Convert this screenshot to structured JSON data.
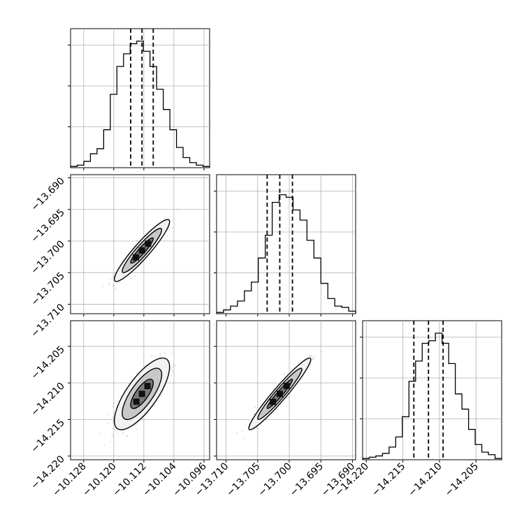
{
  "chart_data": {
    "type": "corner",
    "params": [
      {
        "ticks": [
          -10.128,
          -10.12,
          -10.112,
          -10.104,
          -10.096
        ],
        "labels": [
          "−10.128",
          "−10.120",
          "−10.112",
          "−10.104",
          "−10.096"
        ],
        "range": [
          -10.1315,
          -10.0945
        ],
        "quantiles": [
          -10.1155,
          -10.1125,
          -10.1095
        ]
      },
      {
        "ticks": [
          -13.71,
          -13.705,
          -13.7,
          -13.695,
          -13.69
        ],
        "labels": [
          "−13.710",
          "−13.705",
          "−13.700",
          "−13.695",
          "−13.690"
        ],
        "range": [
          -13.7115,
          -13.6895
        ],
        "quantiles": [
          -13.7035,
          -13.7015,
          -13.6995
        ]
      },
      {
        "ticks": [
          -14.22,
          -14.215,
          -14.21,
          -14.205
        ],
        "labels": [
          "−14.220",
          "−14.215",
          "−14.210",
          "−14.205"
        ],
        "range": [
          -14.2205,
          -14.2015
        ],
        "quantiles": [
          -14.2135,
          -14.2115,
          -14.2095
        ]
      }
    ],
    "histograms": [
      [
        0.01,
        0.02,
        0.05,
        0.11,
        0.15,
        0.3,
        0.58,
        0.8,
        0.9,
        0.98,
        1.0,
        0.92,
        0.8,
        0.62,
        0.46,
        0.3,
        0.16,
        0.08,
        0.04,
        0.02,
        0.01
      ],
      [
        0.01,
        0.03,
        0.06,
        0.1,
        0.18,
        0.25,
        0.44,
        0.62,
        0.88,
        0.94,
        0.92,
        0.82,
        0.74,
        0.58,
        0.44,
        0.24,
        0.12,
        0.06,
        0.05,
        0.02
      ],
      [
        0.01,
        0.02,
        0.03,
        0.05,
        0.1,
        0.18,
        0.34,
        0.62,
        0.78,
        0.92,
        0.94,
        1.0,
        0.92,
        0.76,
        0.52,
        0.4,
        0.24,
        0.12,
        0.06,
        0.04,
        0.01
      ]
    ],
    "correlations": {
      "1-0": 0.93,
      "2-0": 0.75,
      "2-1": 0.96
    },
    "grid": true,
    "line_style": "dashed quantile lines"
  }
}
